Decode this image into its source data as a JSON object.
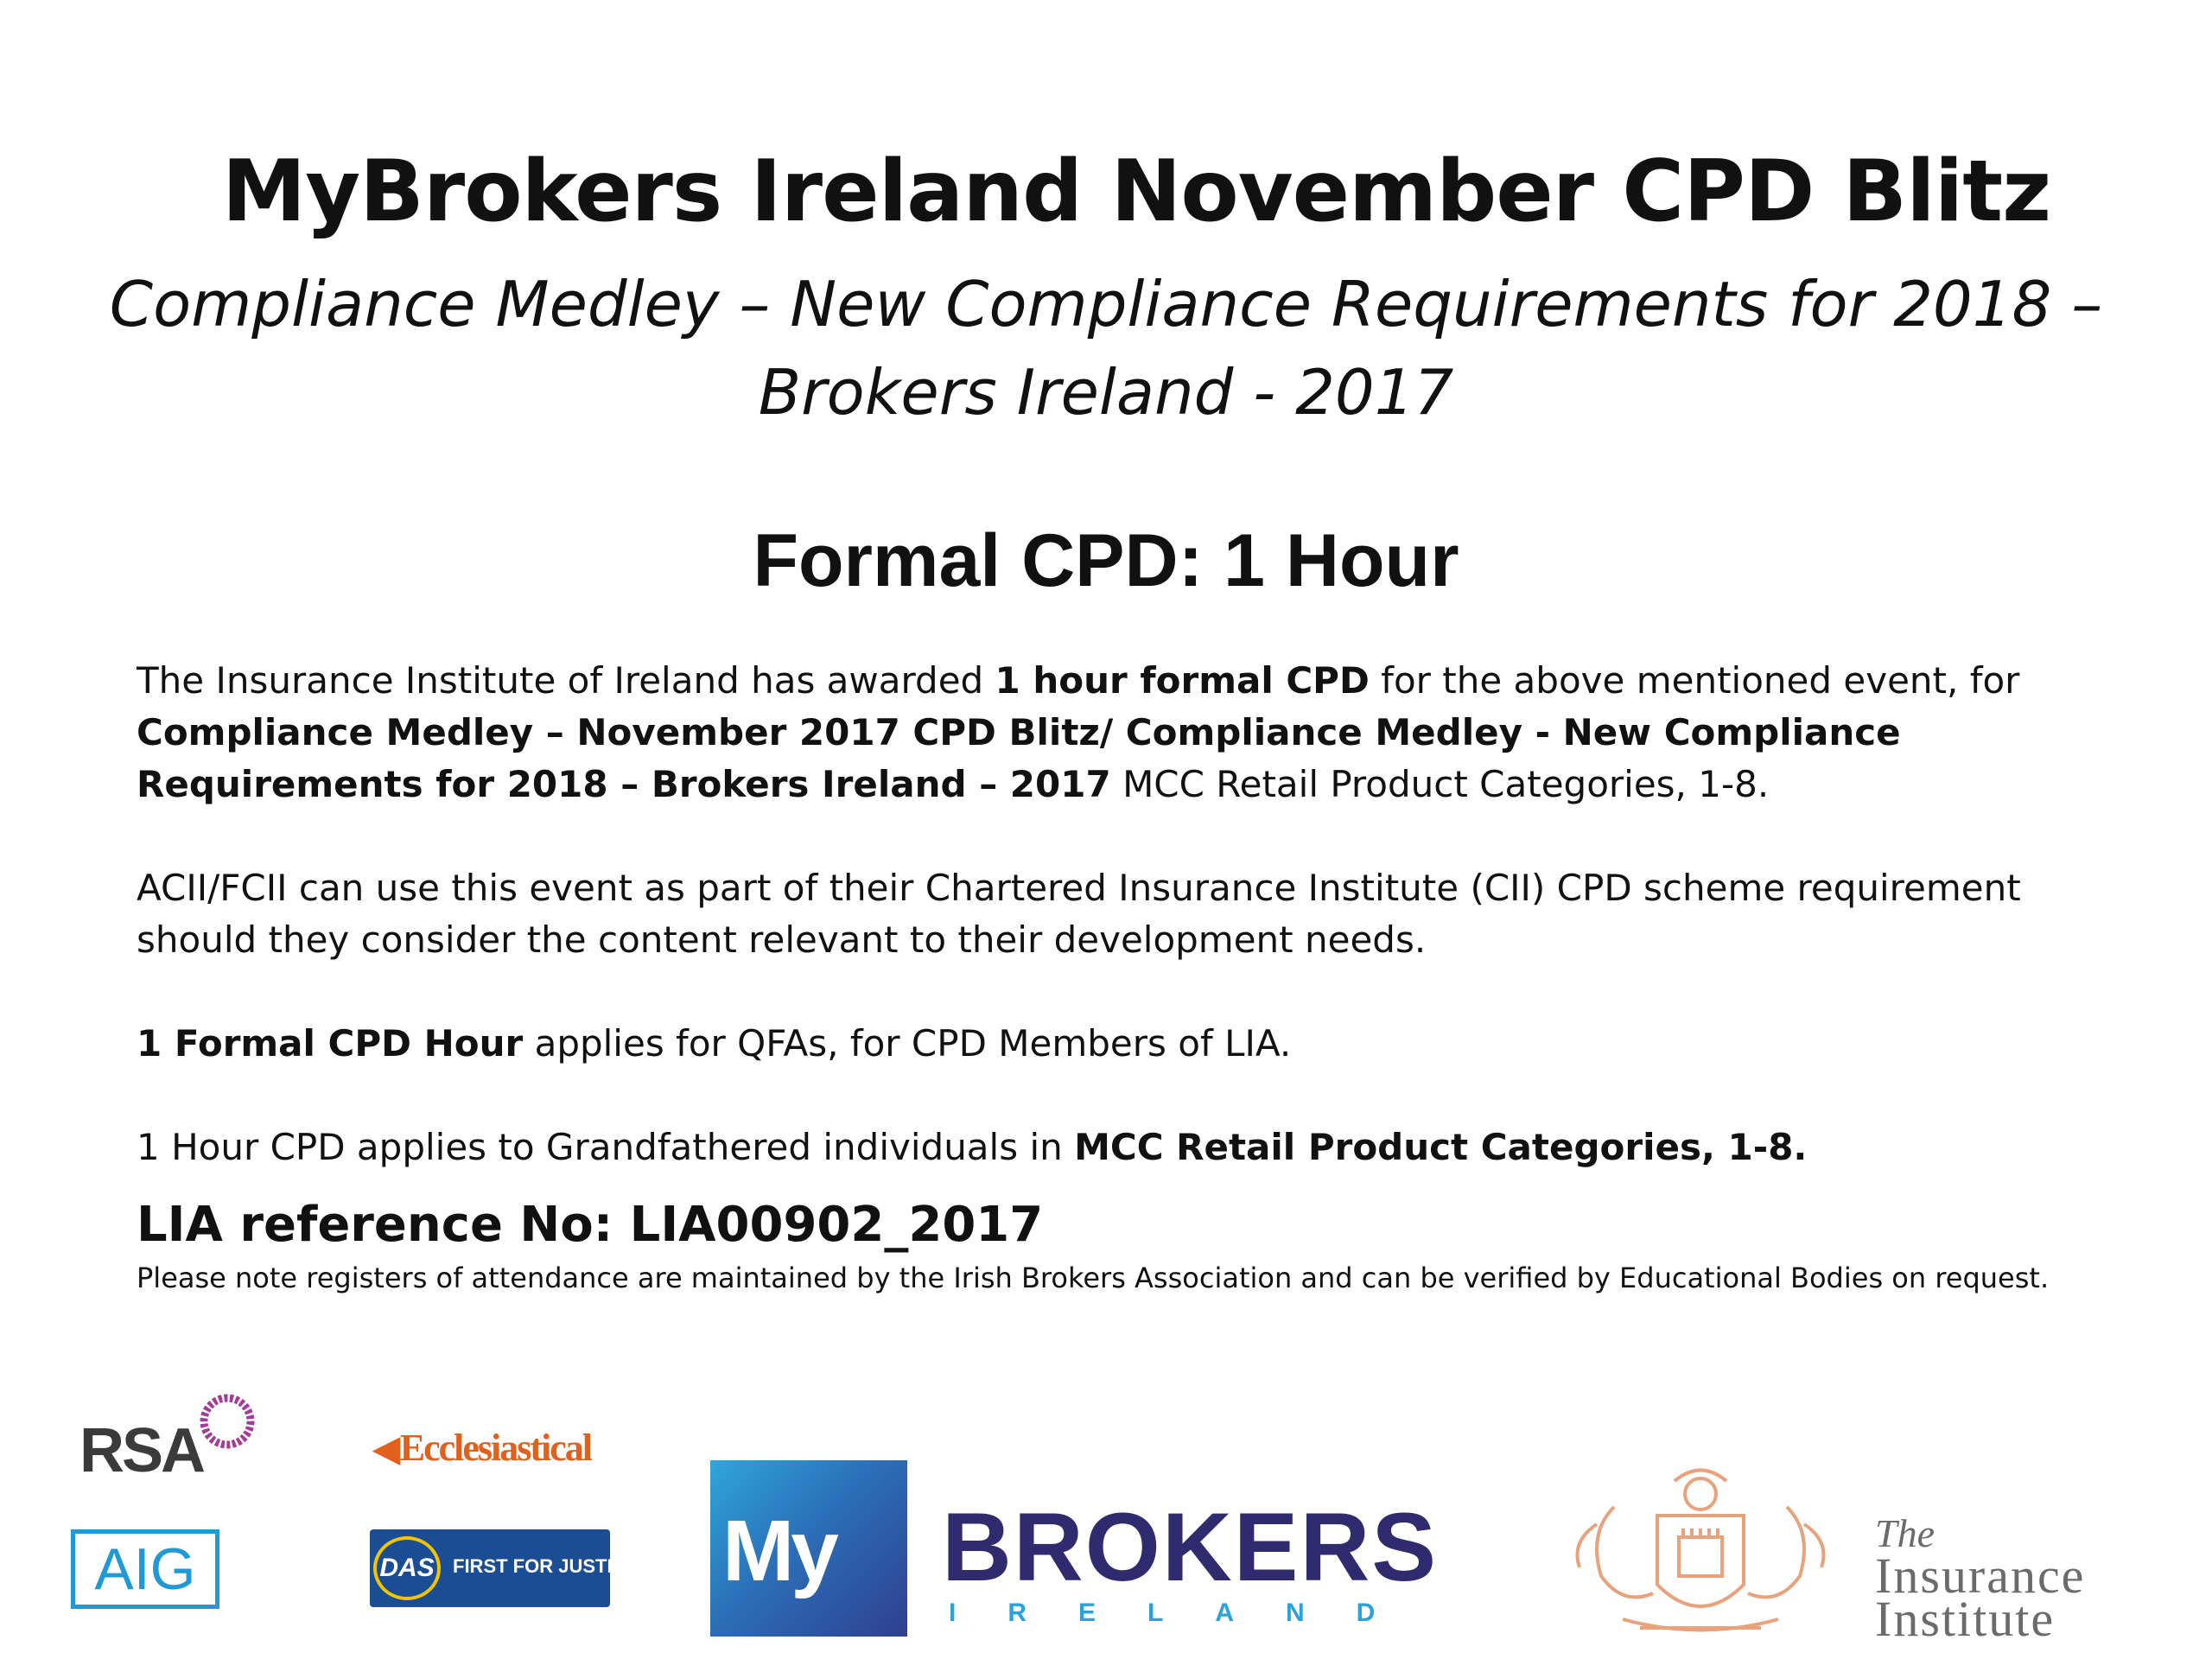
{
  "header": {
    "title": "MyBrokers Ireland November CPD Blitz",
    "subtitle_line1": "Compliance Medley – New Compliance Requirements for 2018 –",
    "subtitle_line2": "Brokers Ireland - 2017",
    "formal_cpd": "Formal CPD: 1 Hour"
  },
  "body": {
    "p1": {
      "t1": "The Insurance Institute of Ireland has awarded ",
      "b1": "1 hour formal CPD",
      "t2": " for the above mentioned event, for ",
      "b2": "Compliance Medley – November 2017 CPD Blitz/ Compliance Medley - New Compliance Requirements for 2018 – Brokers Ireland – 2017",
      "t3": " MCC Retail Product Categories, 1-8."
    },
    "p2": "ACII/FCII can use this event as part of their Chartered Insurance Institute (CII) CPD scheme requirement should they consider the content relevant to their development needs.",
    "p3": {
      "b1": "1 Formal CPD Hour",
      "t1": " applies for QFAs, for CPD Members of LIA."
    },
    "p4": {
      "t1": "1 Hour CPD applies to Grandfathered individuals in ",
      "b1": "MCC Retail Product Categories, 1-8."
    },
    "lia_reference": "LIA reference No: LIA00902_2017",
    "note": "Please note registers of attendance are maintained by the Irish Brokers Association and can be verified by Educational Bodies on request."
  },
  "logos": {
    "rsa": "RSA",
    "aig": "AIG",
    "ecclesiastical": "Ecclesiastical",
    "das": "DAS",
    "das_tagline": "FIRST FOR JUSTICE",
    "mybrokers_my": "My",
    "mybrokers_brokers": "BROKERS",
    "mybrokers_ireland": "IRELAND",
    "ii_the": "The",
    "ii_insurance": "Insurance",
    "ii_institute": "Institute"
  },
  "colors": {
    "mybrokers_navy": "#2f2b6e",
    "mybrokers_blue": "#2aa2dc",
    "aig_blue": "#1f9ad6",
    "ecclesiastical_orange": "#e0601c",
    "das_blue": "#1a4d93",
    "crest_orange": "#e8a27c"
  }
}
